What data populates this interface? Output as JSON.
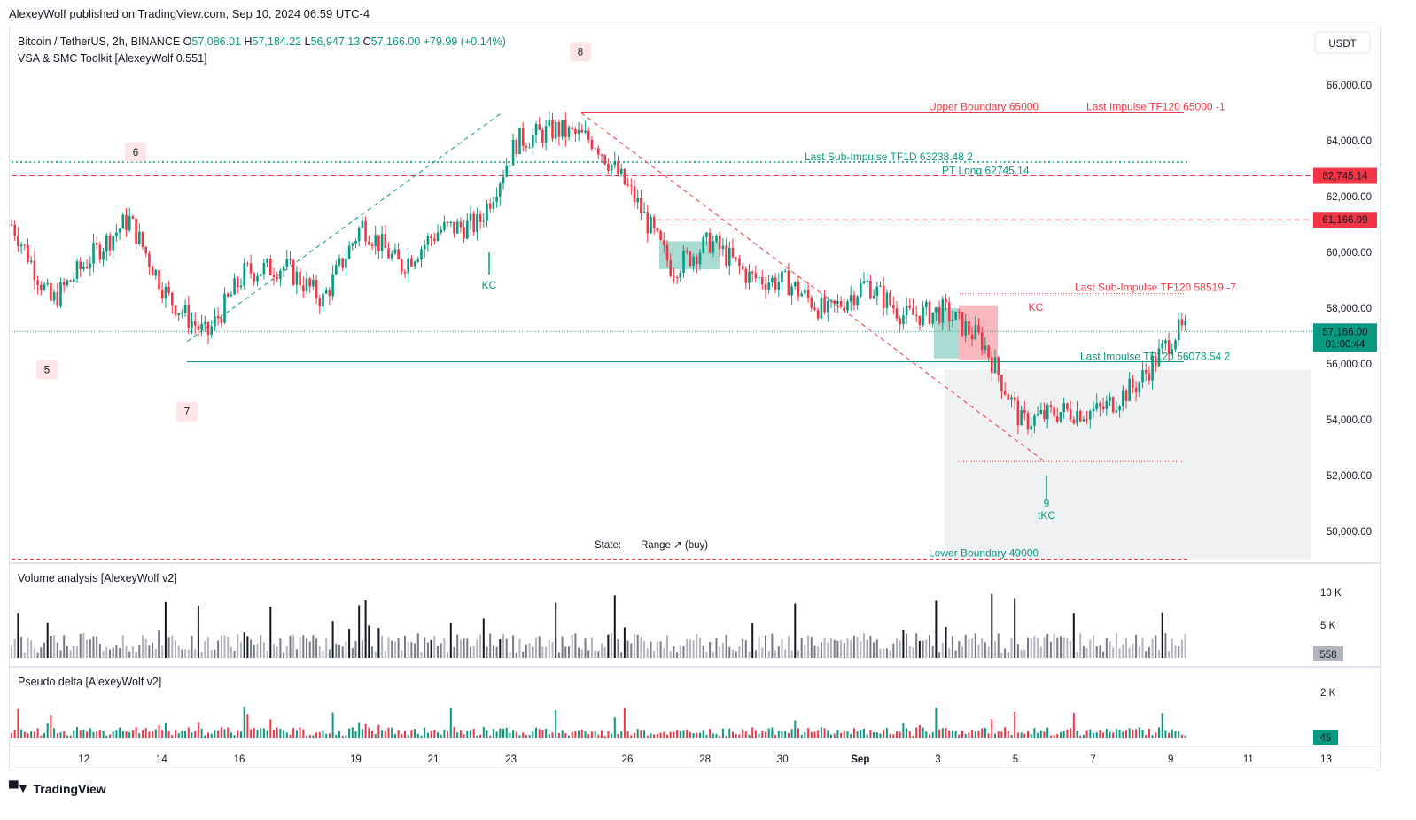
{
  "header": {
    "published": "AlexeyWolf published on TradingView.com, Sep 10, 2024 06:59 UTC-4"
  },
  "symbol": {
    "name": "Bitcoin / TetherUS, 2h, BINANCE",
    "ohlc": [
      {
        "k": "O",
        "v": "57,086.01"
      },
      {
        "k": "H",
        "v": "57,184.22"
      },
      {
        "k": "L",
        "v": "56,947.13"
      },
      {
        "k": "C",
        "v": "57,166.00"
      }
    ],
    "change": "+79.99 (+0.14%)",
    "indicator": "VSA & SMC Toolkit [AlexeyWolf 0.551]"
  },
  "currency_button": "USDT",
  "price_axis": [
    "66,000.00",
    "64,000.00",
    "62,000.00",
    "60,000.00",
    "58,000.00",
    "56,000.00",
    "54,000.00",
    "52,000.00",
    "50,000.00"
  ],
  "price_tags": [
    {
      "value": 62745.14,
      "label": "62,745.14",
      "color": "#f23645"
    },
    {
      "value": 61166.99,
      "label": "61,166.99",
      "color": "#f23645"
    }
  ],
  "last_price": {
    "value": 57166,
    "label": "57,166.00",
    "countdown": "01:00:44",
    "color": "#089981"
  },
  "time_axis": [
    {
      "label": "12",
      "bold": false
    },
    {
      "label": "14",
      "bold": false
    },
    {
      "label": "16",
      "bold": false
    },
    {
      "label": "19",
      "bold": false
    },
    {
      "label": "21",
      "bold": false
    },
    {
      "label": "23",
      "bold": false
    },
    {
      "label": "26",
      "bold": false
    },
    {
      "label": "28",
      "bold": false
    },
    {
      "label": "30",
      "bold": false
    },
    {
      "label": "Sep",
      "bold": true
    },
    {
      "label": "3",
      "bold": false
    },
    {
      "label": "5",
      "bold": false
    },
    {
      "label": "7",
      "bold": false
    },
    {
      "label": "9",
      "bold": false
    },
    {
      "label": "11",
      "bold": false
    },
    {
      "label": "13",
      "bold": false
    }
  ],
  "annotations": {
    "upper_boundary": "Upper Boundary 65000",
    "last_impulse_top": "Last Impulse TF120 65000 -1",
    "sub_impulse_1d": "Last Sub-Impulse TF1D 63238.48 2",
    "pt_long": "PT Long 62745.14",
    "sub_impulse_120": "Last Sub-Impulse TF120 58519 -7",
    "last_impulse_bottom": "Last Impulse TF120 56078.54 2",
    "lower_boundary": "Lower Boundary 49000",
    "state_label": "State:",
    "state_value": "Range ↗ (buy)",
    "kc": "KC",
    "tkc": "tKC",
    "wave_labels": [
      "5",
      "6",
      "7",
      "8",
      "9"
    ]
  },
  "volume_panel": {
    "title": "Volume analysis [AlexeyWolf v2]",
    "axis": [
      "10 K",
      "5 K"
    ],
    "last": "558"
  },
  "delta_panel": {
    "title": "Pseudo delta [AlexeyWolf v2]",
    "axis": [
      "2 K"
    ],
    "last": "45"
  },
  "colors": {
    "up": "#089981",
    "down": "#f23645",
    "grid_border": "#e0e3eb"
  },
  "footer": {
    "brand": "TradingView"
  },
  "chart_data": {
    "type": "candlestick",
    "symbol": "BTC/USDT",
    "timeframe": "2h",
    "x_range": [
      "Aug 11",
      "Sep 13"
    ],
    "ylim": [
      49000,
      66800
    ],
    "close_path": [
      {
        "date": "Aug 11",
        "price": 61000
      },
      {
        "date": "Aug 12",
        "price": 58200
      },
      {
        "date": "Aug 13",
        "price": 59800
      },
      {
        "date": "Aug 14",
        "price": 61200
      },
      {
        "date": "Aug 15",
        "price": 58400
      },
      {
        "date": "Aug 16",
        "price": 57000
      },
      {
        "date": "Aug 17",
        "price": 59300
      },
      {
        "date": "Aug 18",
        "price": 59500
      },
      {
        "date": "Aug 19",
        "price": 58300
      },
      {
        "date": "Aug 20",
        "price": 61000
      },
      {
        "date": "Aug 21",
        "price": 59500
      },
      {
        "date": "Aug 22",
        "price": 60800
      },
      {
        "date": "Aug 23",
        "price": 61000
      },
      {
        "date": "Aug 24",
        "price": 64000
      },
      {
        "date": "Aug 25",
        "price": 64400
      },
      {
        "date": "Aug 26",
        "price": 64000
      },
      {
        "date": "Aug 27",
        "price": 62000
      },
      {
        "date": "Aug 28",
        "price": 59400
      },
      {
        "date": "Aug 29",
        "price": 60400
      },
      {
        "date": "Aug 30",
        "price": 59100
      },
      {
        "date": "Aug 31",
        "price": 58900
      },
      {
        "date": "Sep 1",
        "price": 57800
      },
      {
        "date": "Sep 2",
        "price": 58900
      },
      {
        "date": "Sep 3",
        "price": 57700
      },
      {
        "date": "Sep 4",
        "price": 57900
      },
      {
        "date": "Sep 5",
        "price": 56800
      },
      {
        "date": "Sep 6",
        "price": 53900
      },
      {
        "date": "Sep 7",
        "price": 54300
      },
      {
        "date": "Sep 8",
        "price": 54300
      },
      {
        "date": "Sep 9",
        "price": 55300
      },
      {
        "date": "Sep 10",
        "price": 57166
      }
    ],
    "horizontal_levels": [
      {
        "label": "Upper Boundary 65000",
        "price": 65000
      },
      {
        "label": "Last Sub-Impulse TF1D 63238.48 2",
        "price": 63238.48
      },
      {
        "label": "PT Long 62745.14",
        "price": 62745.14
      },
      {
        "price": 61166.99
      },
      {
        "label": "Last Sub-Impulse TF120 58519 -7",
        "price": 58519
      },
      {
        "label": "Last Impulse TF120 56078.54 2",
        "price": 56078.54
      },
      {
        "price": 52500
      },
      {
        "label": "Lower Boundary 49000",
        "price": 49000
      }
    ]
  }
}
